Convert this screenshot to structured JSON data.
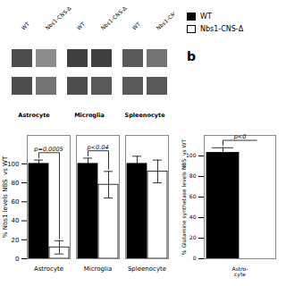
{
  "chart_data": [
    {
      "type": "blot",
      "categories": [
        "Astrocyte",
        "Microglia",
        "Spleenocyte"
      ],
      "series": [
        {
          "name": "WT",
          "colors": [
            "#4d4d4d",
            "#404040",
            "#595959",
            "#4d4d4d",
            "#4d4d4d",
            "#595959"
          ]
        },
        {
          "name": "Nbs1-CNS-Δ",
          "colors": [
            "#8c8c8c",
            "#404040",
            "#737373",
            "#737373",
            "#595959",
            "#595959"
          ]
        }
      ]
    },
    {
      "type": "bar",
      "categories": [
        "Astrocyte",
        "Microglia",
        "Spleenocyte"
      ],
      "series": [
        {
          "name": "WT",
          "color": "#000000",
          "values": [
            100,
            100,
            100
          ],
          "errors": [
            4,
            6,
            8
          ]
        },
        {
          "name": "Nbs1-CNS-Δ",
          "color": "#ffffff",
          "values": [
            12,
            78,
            92
          ],
          "errors": [
            7,
            14,
            12
          ]
        }
      ],
      "ylabel": "% Nbs1 levels NBS  vs WT",
      "ylim": [
        0,
        130
      ],
      "yticks": [
        0,
        20,
        40,
        60,
        80,
        100
      ],
      "annotations": [
        {
          "category": "Astrocyte",
          "text": "p=0.0005"
        },
        {
          "category": "Microglia",
          "text": "p<0.04"
        }
      ],
      "legend": "upper right"
    },
    {
      "type": "bar",
      "title": "b",
      "categories": [
        "Astro-\ncyte"
      ],
      "series": [
        {
          "name": "WT",
          "color": "#000000",
          "values": [
            103
          ],
          "errors": [
            5
          ]
        }
      ],
      "ylabel": "% Glutamine synthetase levels NBS  vs WT",
      "ylim": [
        0,
        120
      ],
      "yticks": [
        0,
        20,
        40,
        60,
        80,
        100
      ],
      "annotations": [
        {
          "category": "Astro-\ncyte",
          "text": "p<0"
        }
      ]
    }
  ]
}
